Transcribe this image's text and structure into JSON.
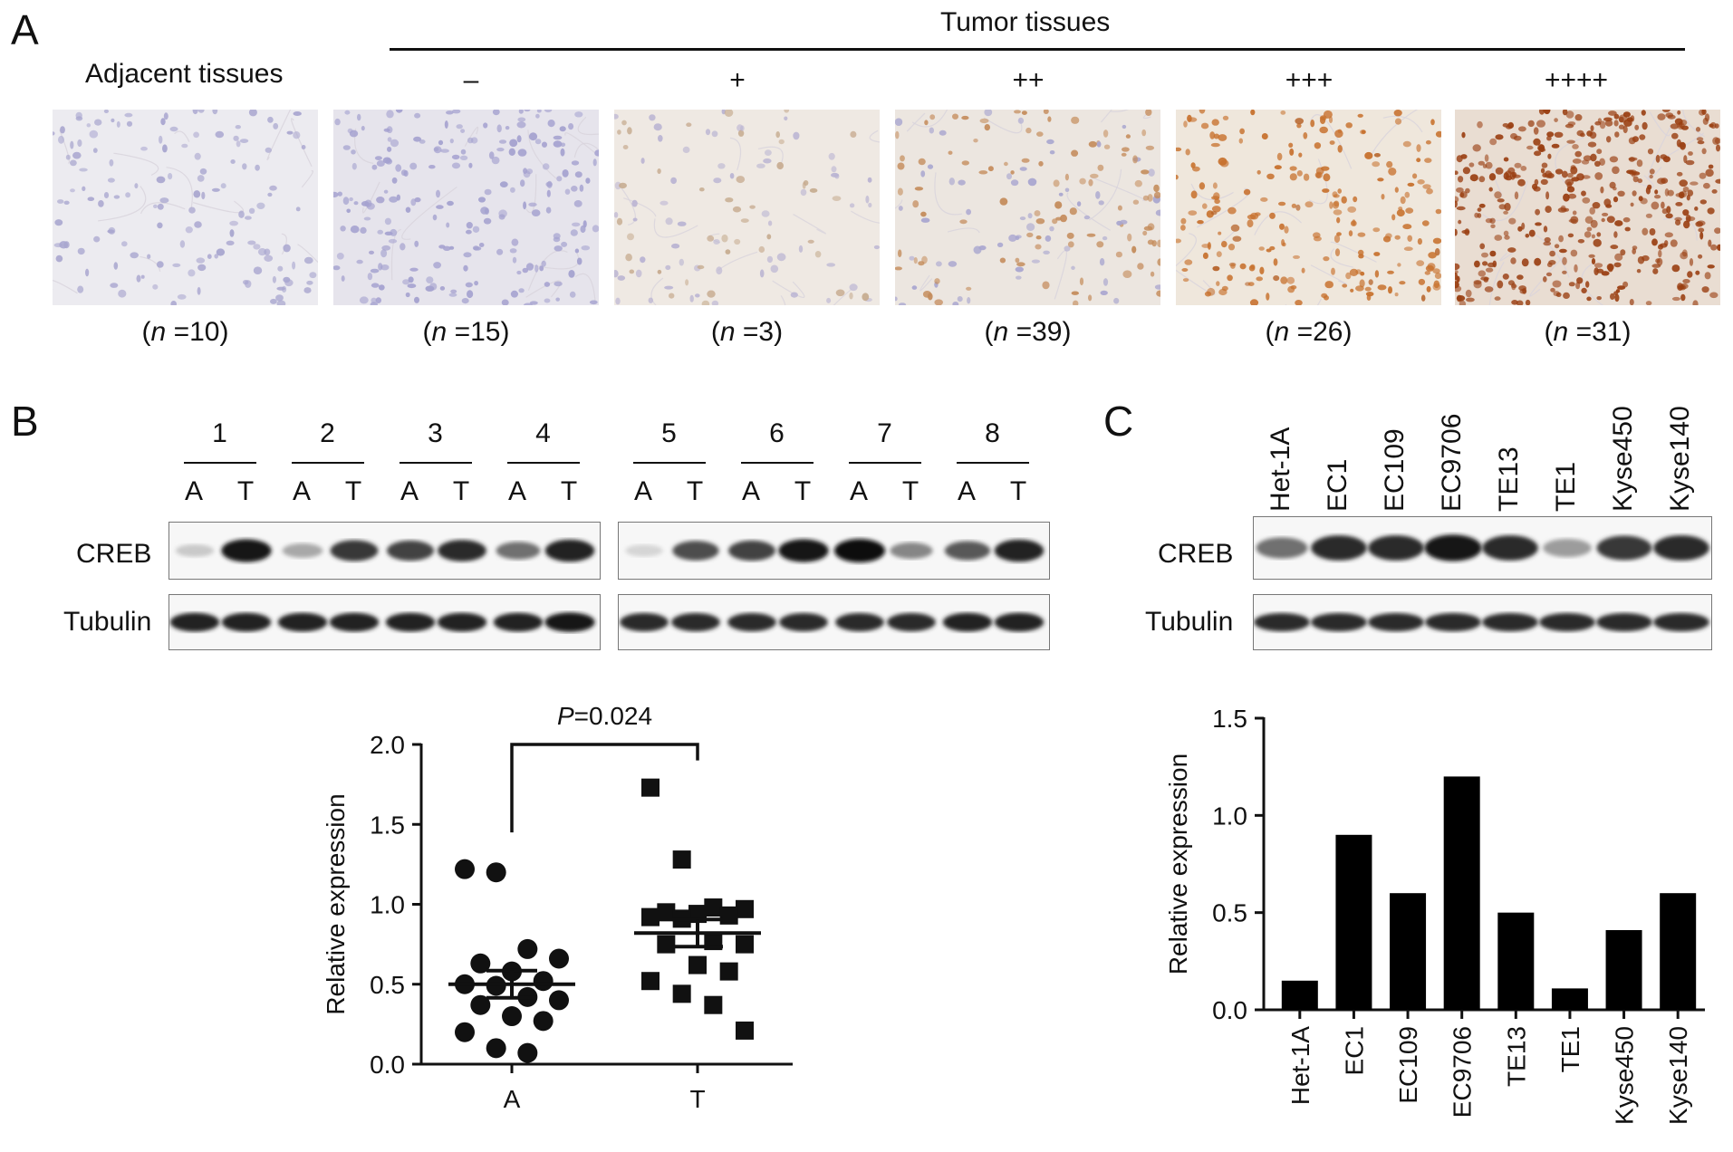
{
  "panelA": {
    "letter": "A",
    "tumor_title": "Tumor tissues",
    "adjacent_title": "Adjacent tissues",
    "grades": [
      "–",
      "+",
      "++",
      "+++",
      "++++"
    ],
    "images": [
      {
        "label": "adjacent",
        "n": "10",
        "color": "light-blue"
      },
      {
        "label": "–",
        "n": "15",
        "color": "blue"
      },
      {
        "label": "+",
        "n": "3",
        "color": "pale-brown"
      },
      {
        "label": "++",
        "n": "39",
        "color": "brown"
      },
      {
        "label": "+++",
        "n": "26",
        "color": "orange-brown"
      },
      {
        "label": "++++",
        "n": "31",
        "color": "dark-brown"
      }
    ],
    "n_prefix": "n",
    "n_texts": [
      "=10)",
      "=15)",
      "=3)",
      "=39)",
      "=26)",
      "=31)"
    ]
  },
  "panelB": {
    "letter": "B",
    "sample_numbers": [
      "1",
      "2",
      "3",
      "4",
      "5",
      "6",
      "7",
      "8"
    ],
    "lane_labels": [
      "A",
      "T",
      "A",
      "T",
      "A",
      "T",
      "A",
      "T",
      "A",
      "T",
      "A",
      "T",
      "A",
      "T",
      "A",
      "T"
    ],
    "row_labels": [
      "CREB",
      "Tubulin"
    ],
    "creb_intensity": [
      0.15,
      0.95,
      0.3,
      0.8,
      0.75,
      0.85,
      0.55,
      0.9,
      0.1,
      0.7,
      0.75,
      0.95,
      1.0,
      0.45,
      0.65,
      0.9
    ],
    "tubulin_intensity": [
      0.9,
      0.9,
      0.9,
      0.9,
      0.9,
      0.9,
      0.9,
      0.95,
      0.85,
      0.85,
      0.85,
      0.85,
      0.85,
      0.85,
      0.9,
      0.9
    ]
  },
  "panelC": {
    "letter": "C",
    "cell_lines": [
      "Het-1A",
      "EC1",
      "EC109",
      "EC9706",
      "TE13",
      "TE1",
      "Kyse450",
      "Kyse140"
    ],
    "row_labels": [
      "CREB",
      "Tubulin"
    ],
    "creb_intensity": [
      0.55,
      0.85,
      0.85,
      0.95,
      0.85,
      0.35,
      0.8,
      0.85
    ],
    "tubulin_intensity": [
      0.85,
      0.85,
      0.85,
      0.85,
      0.85,
      0.85,
      0.85,
      0.85
    ]
  },
  "chart_data": [
    {
      "type": "scatter",
      "ylabel": "Relative expression",
      "categories": [
        "A",
        "T"
      ],
      "ylim": [
        0,
        2.0
      ],
      "yticks": [
        "0.0",
        "0.5",
        "1.0",
        "1.5",
        "2.0"
      ],
      "annotation": {
        "p_symbol": "P",
        "p_value": "=0.024"
      },
      "series": [
        {
          "name": "A",
          "marker": "circle",
          "values": [
            1.22,
            1.2,
            0.72,
            0.66,
            0.63,
            0.58,
            0.52,
            0.5,
            0.49,
            0.42,
            0.4,
            0.37,
            0.3,
            0.27,
            0.2,
            0.1,
            0.07
          ],
          "mean": 0.5,
          "sem": 0.085
        },
        {
          "name": "T",
          "marker": "square",
          "values": [
            1.73,
            1.28,
            0.98,
            0.97,
            0.95,
            0.94,
            0.93,
            0.92,
            0.91,
            0.77,
            0.75,
            0.75,
            0.62,
            0.58,
            0.52,
            0.44,
            0.37,
            0.21
          ],
          "mean": 0.82,
          "sem": 0.085
        }
      ]
    },
    {
      "type": "bar",
      "ylabel": "Relative expression",
      "categories": [
        "Het-1A",
        "EC1",
        "EC109",
        "EC9706",
        "TE13",
        "TE1",
        "Kyse450",
        "Kyse140"
      ],
      "values": [
        0.15,
        0.9,
        0.6,
        1.2,
        0.5,
        0.11,
        0.41,
        0.6
      ],
      "ylim": [
        0,
        1.5
      ],
      "yticks": [
        "0.0",
        "0.5",
        "1.0",
        "1.5"
      ]
    }
  ]
}
